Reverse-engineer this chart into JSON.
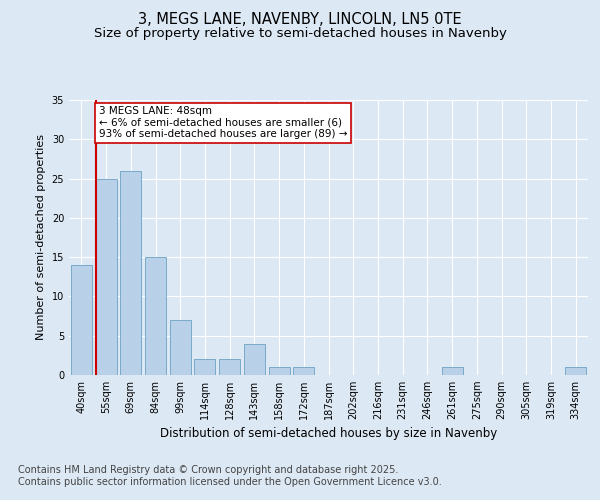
{
  "title1": "3, MEGS LANE, NAVENBY, LINCOLN, LN5 0TE",
  "title2": "Size of property relative to semi-detached houses in Navenby",
  "xlabel": "Distribution of semi-detached houses by size in Navenby",
  "ylabel": "Number of semi-detached properties",
  "categories": [
    "40sqm",
    "55sqm",
    "69sqm",
    "84sqm",
    "99sqm",
    "114sqm",
    "128sqm",
    "143sqm",
    "158sqm",
    "172sqm",
    "187sqm",
    "202sqm",
    "216sqm",
    "231sqm",
    "246sqm",
    "261sqm",
    "275sqm",
    "290sqm",
    "305sqm",
    "319sqm",
    "334sqm"
  ],
  "values": [
    14,
    25,
    26,
    15,
    7,
    2,
    2,
    4,
    1,
    1,
    0,
    0,
    0,
    0,
    0,
    1,
    0,
    0,
    0,
    0,
    1
  ],
  "bar_color": "#b8d0e8",
  "bar_edge_color": "#7aaac8",
  "vline_color": "#cc0000",
  "annotation_text": "3 MEGS LANE: 48sqm\n← 6% of semi-detached houses are smaller (6)\n93% of semi-detached houses are larger (89) →",
  "annotation_box_color": "#ffffff",
  "annotation_border_color": "#cc0000",
  "ylim": [
    0,
    35
  ],
  "yticks": [
    0,
    5,
    10,
    15,
    20,
    25,
    30,
    35
  ],
  "bg_color": "#dce8f4",
  "axes_bg_color": "#dce8f4",
  "footer_text": "Contains HM Land Registry data © Crown copyright and database right 2025.\nContains public sector information licensed under the Open Government Licence v3.0.",
  "title_fontsize": 10.5,
  "subtitle_fontsize": 9.5,
  "annotation_fontsize": 7.5,
  "footer_fontsize": 7,
  "ylabel_fontsize": 8,
  "xlabel_fontsize": 8.5,
  "tick_fontsize": 7
}
